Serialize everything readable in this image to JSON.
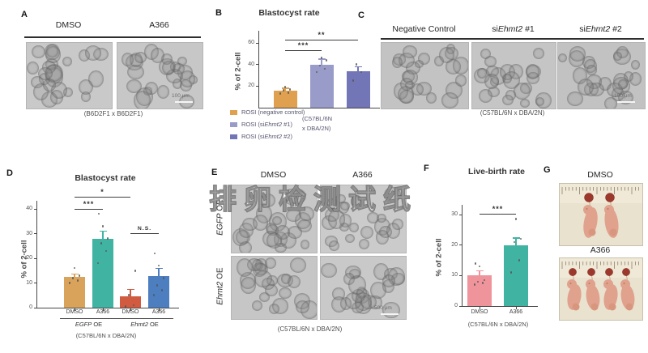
{
  "watermark": "排卵检测试纸",
  "panels": {
    "a": {
      "label": "A",
      "headers": [
        "DMSO",
        "A366"
      ],
      "caption": "(B6D2F1 x B6D2F1)",
      "scale_bar": "100 μm"
    },
    "b": {
      "label": "B",
      "legend": [
        {
          "color": "#dfa050",
          "segs": [
            {
              "t": "ROSI (negative control)"
            }
          ]
        },
        {
          "color": "#999cc9",
          "segs": [
            {
              "t": "ROSI (si"
            },
            {
              "t": "Ehmt2",
              "i": 1
            },
            {
              "t": " #1)"
            }
          ]
        },
        {
          "color": "#7276b7",
          "segs": [
            {
              "t": "ROSI (si"
            },
            {
              "t": "Ehmt2",
              "i": 1
            },
            {
              "t": " #2)"
            }
          ]
        }
      ],
      "note": [
        "(C57BL/6N",
        "x DBA/2N)"
      ]
    },
    "c": {
      "label": "C",
      "headers": [
        [
          {
            "t": "Negative Control"
          }
        ],
        [
          {
            "t": "si"
          },
          {
            "t": "Ehmt2",
            "i": 1
          },
          {
            "t": " #1"
          }
        ],
        [
          {
            "t": "si"
          },
          {
            "t": "Ehmt2",
            "i": 1
          },
          {
            "t": " #2"
          }
        ]
      ],
      "caption": "(C57BL/6N x DBA/2N)",
      "scale_bar": "100 μm"
    },
    "d": {
      "label": "D"
    },
    "e": {
      "label": "E",
      "col_headers": [
        "DMSO",
        "A366"
      ],
      "row_headers": [
        [
          {
            "t": "EGFP",
            "i": 1
          },
          {
            "t": " OE"
          }
        ],
        [
          {
            "t": "Ehmt2",
            "i": 1
          },
          {
            "t": " OE"
          }
        ]
      ],
      "caption": "(C57BL/6N x DBA/2N)",
      "scale_bar": "500 μm"
    },
    "f": {
      "label": "F"
    },
    "g": {
      "label": "G",
      "photo_labels": [
        "DMSO",
        "A366"
      ],
      "pup_counts": [
        2,
        4
      ]
    }
  },
  "chart_data": [
    {
      "id": "B",
      "type": "bar",
      "title": "Blastocyst rate",
      "ylabel": "% of 2-cell",
      "ylim": [
        0,
        60
      ],
      "yticks": [
        20,
        40,
        60
      ],
      "categories": [
        "ROSI (negative control)",
        "ROSI (siEhmt2 #1)",
        "ROSI (siEhmt2 #2)"
      ],
      "values": [
        16,
        40,
        34
      ],
      "errors": [
        2,
        5,
        4
      ],
      "points": [
        [
          13,
          14,
          16,
          17,
          19
        ],
        [
          33,
          36,
          39,
          44,
          46
        ],
        [
          25,
          33,
          40
        ]
      ],
      "colors": [
        "#dfa050",
        "#999cc9",
        "#7276b7"
      ],
      "significance": [
        {
          "pair": [
            0,
            1
          ],
          "label": "***"
        },
        {
          "pair": [
            0,
            2
          ],
          "label": "**"
        }
      ],
      "legend_position": "bottom",
      "grid": false,
      "caption": "(C57BL/6N x DBA/2N)"
    },
    {
      "id": "D",
      "type": "bar",
      "title": "Blastocyst rate",
      "ylabel": "% of 2-cell",
      "ylim": [
        0,
        40
      ],
      "yticks": [
        0,
        10,
        20,
        30,
        40
      ],
      "categories": [
        "DMSO",
        "A366",
        "DMSO",
        "A366"
      ],
      "groups": [
        {
          "segs": [
            {
              "t": "EGFP",
              "i": 1
            },
            {
              "t": " OE"
            }
          ],
          "span": [
            0,
            1
          ]
        },
        {
          "segs": [
            {
              "t": "Ehmt2",
              "i": 1
            },
            {
              "t": " OE"
            }
          ],
          "span": [
            2,
            3
          ]
        }
      ],
      "values": [
        12.5,
        28,
        4.5,
        12.8
      ],
      "errors": [
        1,
        3,
        3,
        3.2
      ],
      "points": [
        [
          10,
          11,
          12,
          13,
          16
        ],
        [
          18,
          23,
          26,
          28,
          33,
          38
        ],
        [
          0.5,
          1,
          5,
          15
        ],
        [
          5,
          7,
          9,
          12,
          17,
          22
        ]
      ],
      "colors": [
        "#d9a35b",
        "#41b3a3",
        "#d05b40",
        "#4d7ec0"
      ],
      "significance": [
        {
          "pair": [
            0,
            1
          ],
          "label": "***"
        },
        {
          "pair": [
            0,
            2
          ],
          "label": "*"
        },
        {
          "pair": [
            2,
            3
          ],
          "label": "N.S."
        }
      ],
      "grid": false,
      "caption": "(C57BL/6N x DBA/2N)"
    },
    {
      "id": "F",
      "type": "bar",
      "title": "Live-birth rate",
      "ylabel": "% of 2-cell",
      "ylim": [
        0,
        30
      ],
      "yticks": [
        0,
        10,
        20,
        30
      ],
      "categories": [
        "DMSO",
        "A366"
      ],
      "values": [
        10,
        20
      ],
      "errors": [
        1.5,
        2.3
      ],
      "points": [
        [
          7,
          7.5,
          8,
          8.5,
          13,
          14
        ],
        [
          11,
          15,
          21,
          22,
          28.5
        ]
      ],
      "colors": [
        "#f0949c",
        "#41b3a3"
      ],
      "significance": [
        {
          "pair": [
            0,
            1
          ],
          "label": "***"
        }
      ],
      "grid": false,
      "caption": "(C57BL/6N x DBA/2N)"
    }
  ]
}
